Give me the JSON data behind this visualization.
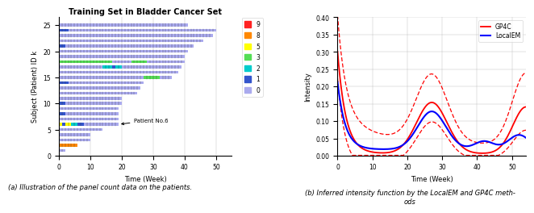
{
  "title_left": "Training Set in Bladder Cancer Set",
  "xlabel_left": "Time (Week)",
  "ylabel_left": "Subject (Patient) ID k",
  "caption_left": "(a) Illustration of the panel count data on the patients.",
  "caption_right": "(b) Inferred intensity function by the LocalEM and GP4C meth-\nods",
  "xlabel_right": "Time (Week)",
  "ylabel_right": "Intensity",
  "color_map": {
    "0": "#aaaaee",
    "1": "#3355cc",
    "2": "#00cccc",
    "3": "#55dd55",
    "5": "#ffff00",
    "8": "#ff8800",
    "9": "#ff2222"
  },
  "legend_labels": [
    "9",
    "8",
    "5",
    "3",
    "2",
    "1",
    "0"
  ],
  "legend_colors": [
    "#ff2222",
    "#ff8800",
    "#ffff00",
    "#55dd55",
    "#00cccc",
    "#3355cc",
    "#aaaaee"
  ],
  "patients": [
    {
      "id": 1,
      "segments": [
        {
          "start": 0,
          "end": 2,
          "count": 0
        }
      ]
    },
    {
      "id": 2,
      "segments": [
        {
          "start": 0,
          "end": 6,
          "count": 8
        }
      ]
    },
    {
      "id": 3,
      "segments": [
        {
          "start": 0,
          "end": 10,
          "count": 0
        }
      ]
    },
    {
      "id": 4,
      "segments": [
        {
          "start": 0,
          "end": 10,
          "count": 0
        }
      ]
    },
    {
      "id": 5,
      "segments": [
        {
          "start": 0,
          "end": 14,
          "count": 0
        }
      ]
    },
    {
      "id": 6,
      "segments": [
        {
          "start": 0,
          "end": 1,
          "count": 5
        },
        {
          "start": 1,
          "end": 2,
          "count": 1
        },
        {
          "start": 2,
          "end": 4,
          "count": 5
        },
        {
          "start": 4,
          "end": 6,
          "count": 2
        },
        {
          "start": 6,
          "end": 8,
          "count": 1
        },
        {
          "start": 8,
          "end": 19,
          "count": 0
        }
      ]
    },
    {
      "id": 7,
      "segments": [
        {
          "start": 0,
          "end": 19,
          "count": 0
        }
      ]
    },
    {
      "id": 8,
      "segments": [
        {
          "start": 0,
          "end": 2,
          "count": 1
        },
        {
          "start": 2,
          "end": 19,
          "count": 0
        }
      ]
    },
    {
      "id": 9,
      "segments": [
        {
          "start": 0,
          "end": 19,
          "count": 0
        }
      ]
    },
    {
      "id": 10,
      "segments": [
        {
          "start": 0,
          "end": 2,
          "count": 1
        },
        {
          "start": 2,
          "end": 20,
          "count": 0
        }
      ]
    },
    {
      "id": 11,
      "segments": [
        {
          "start": 0,
          "end": 20,
          "count": 0
        }
      ]
    },
    {
      "id": 12,
      "segments": [
        {
          "start": 0,
          "end": 25,
          "count": 0
        }
      ]
    },
    {
      "id": 13,
      "segments": [
        {
          "start": 0,
          "end": 26,
          "count": 0
        }
      ]
    },
    {
      "id": 14,
      "segments": [
        {
          "start": 0,
          "end": 3,
          "count": 1
        },
        {
          "start": 3,
          "end": 27,
          "count": 0
        }
      ]
    },
    {
      "id": 15,
      "segments": [
        {
          "start": 0,
          "end": 27,
          "count": 0
        },
        {
          "start": 27,
          "end": 32,
          "count": 3
        },
        {
          "start": 32,
          "end": 36,
          "count": 0
        }
      ]
    },
    {
      "id": 16,
      "segments": [
        {
          "start": 0,
          "end": 38,
          "count": 0
        }
      ]
    },
    {
      "id": 17,
      "segments": [
        {
          "start": 0,
          "end": 14,
          "count": 0
        },
        {
          "start": 14,
          "end": 17,
          "count": 2
        },
        {
          "start": 17,
          "end": 18,
          "count": 1
        },
        {
          "start": 18,
          "end": 20,
          "count": 2
        },
        {
          "start": 20,
          "end": 39,
          "count": 0
        }
      ]
    },
    {
      "id": 18,
      "segments": [
        {
          "start": 0,
          "end": 17,
          "count": 3
        },
        {
          "start": 17,
          "end": 23,
          "count": 0
        },
        {
          "start": 23,
          "end": 28,
          "count": 3
        },
        {
          "start": 28,
          "end": 40,
          "count": 0
        }
      ]
    },
    {
      "id": 19,
      "segments": [
        {
          "start": 0,
          "end": 40,
          "count": 0
        }
      ]
    },
    {
      "id": 20,
      "segments": [
        {
          "start": 0,
          "end": 41,
          "count": 0
        }
      ]
    },
    {
      "id": 21,
      "segments": [
        {
          "start": 0,
          "end": 2,
          "count": 1
        },
        {
          "start": 2,
          "end": 43,
          "count": 0
        }
      ]
    },
    {
      "id": 22,
      "segments": [
        {
          "start": 0,
          "end": 46,
          "count": 0
        }
      ]
    },
    {
      "id": 23,
      "segments": [
        {
          "start": 0,
          "end": 49,
          "count": 0
        }
      ]
    },
    {
      "id": 24,
      "segments": [
        {
          "start": 0,
          "end": 3,
          "count": 1
        },
        {
          "start": 3,
          "end": 50,
          "count": 0
        }
      ]
    },
    {
      "id": 25,
      "segments": [
        {
          "start": 0,
          "end": 41,
          "count": 0
        }
      ]
    }
  ],
  "right_xlim": [
    0,
    54
  ],
  "right_ylim": [
    0,
    0.4
  ],
  "right_yticks": [
    0.0,
    0.05,
    0.1,
    0.15,
    0.2,
    0.25,
    0.3,
    0.35,
    0.4
  ],
  "gp4c_color": "#ff0000",
  "localem_color": "#0000ff"
}
